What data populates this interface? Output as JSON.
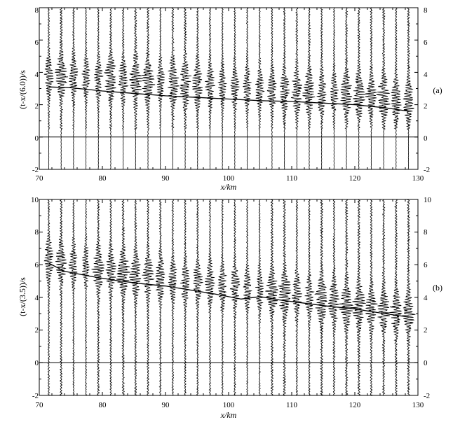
{
  "chart_data": [
    {
      "type": "line",
      "panel_label": "(a)",
      "xlabel": "x/km",
      "ylabel": "(t-x/(6.0))/s",
      "xlim": [
        70,
        130
      ],
      "ylim": [
        -2,
        8
      ],
      "x_ticks": [
        "70",
        "80",
        "90",
        "100",
        "110",
        "120",
        "130"
      ],
      "y_ticks": [
        "-2",
        "0",
        "2",
        "4",
        "6",
        "8"
      ],
      "y_ticks_right": [
        "-2",
        "0",
        "2",
        "4",
        "6",
        "8"
      ],
      "grid": false,
      "traces": {
        "x_start": 71.5,
        "x_end": 128.5,
        "count": 30,
        "signal_from": 0.5,
        "signal_to": 8,
        "peak_time": [
          [
            71.5,
            3.8
          ],
          [
            90,
            3.4
          ],
          [
            110,
            2.8
          ],
          [
            121.9,
            2.6
          ],
          [
            128.5,
            2.1
          ]
        ],
        "seed": 11
      },
      "series": [
        {
          "x": [
            71.5,
            75,
            80,
            85,
            90,
            95,
            100,
            105,
            110,
            115,
            120,
            125,
            128.5
          ],
          "y": [
            3.1,
            3.05,
            2.85,
            2.7,
            2.55,
            2.45,
            2.35,
            2.25,
            2.2,
            2.1,
            2.0,
            1.8,
            1.6
          ]
        }
      ]
    },
    {
      "type": "line",
      "panel_label": "(b)",
      "xlabel": "x/km",
      "ylabel": "(t-x/(3.5))/s",
      "xlim": [
        70,
        130
      ],
      "ylim": [
        -2,
        10
      ],
      "x_ticks": [
        "70",
        "80",
        "90",
        "100",
        "110",
        "120",
        "130"
      ],
      "y_ticks": [
        "-2",
        "0",
        "2",
        "4",
        "6",
        "8",
        "10"
      ],
      "y_ticks_right": [
        "-2",
        "0",
        "2",
        "4",
        "6",
        "8",
        "10"
      ],
      "grid": false,
      "traces": {
        "x_start": 71.5,
        "x_end": 128.5,
        "count": 30,
        "signal_from": -2,
        "signal_to": 10,
        "peak_time": [
          [
            71.5,
            6.3
          ],
          [
            80,
            5.7
          ],
          [
            90,
            5.1
          ],
          [
            100,
            4.7
          ],
          [
            110,
            4.2
          ],
          [
            120,
            3.5
          ],
          [
            128.5,
            3.0
          ]
        ],
        "seed": 37
      },
      "series": [
        {
          "x": [
            71.5,
            74,
            78,
            82,
            86,
            90,
            94,
            98,
            102,
            105,
            108,
            112,
            116,
            120,
            124,
            128.5
          ],
          "y": [
            6.1,
            5.6,
            5.3,
            5.05,
            4.85,
            4.7,
            4.45,
            4.2,
            3.9,
            4.05,
            3.85,
            3.65,
            3.45,
            3.3,
            3.05,
            2.8
          ]
        }
      ]
    }
  ]
}
